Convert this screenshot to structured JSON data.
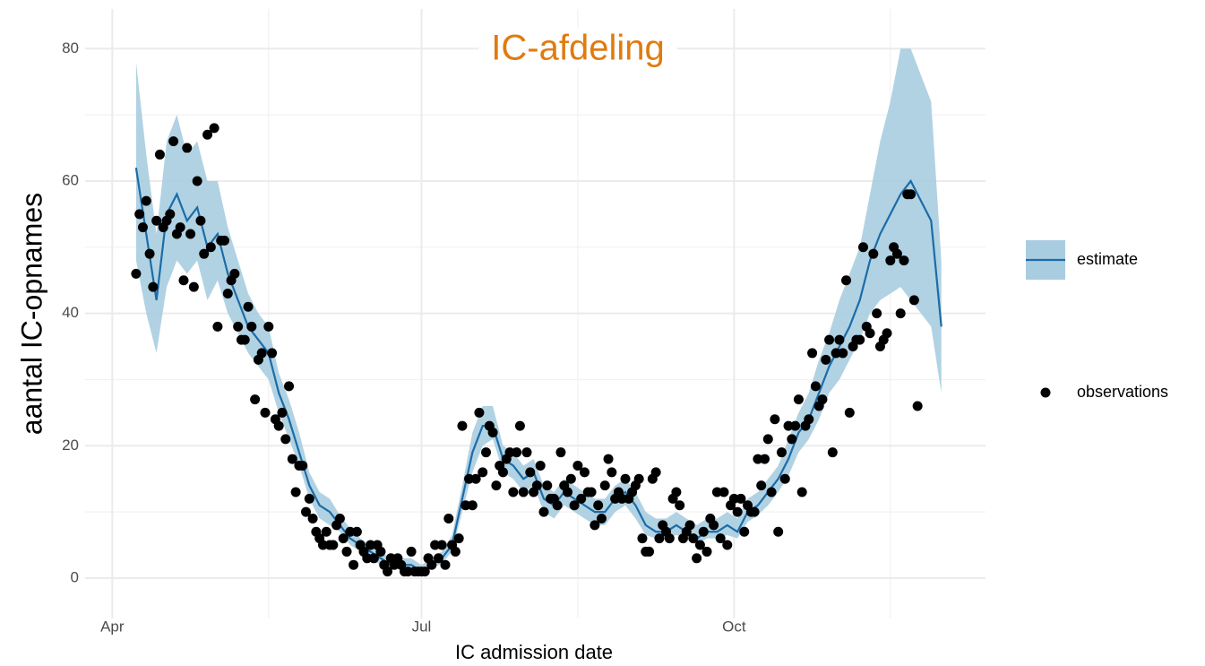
{
  "chart_data": {
    "type": "line",
    "title": "IC-afdeling",
    "x_label": "IC admission date",
    "y_label": "aantal IC-opnames",
    "xlim": [
      -8,
      257
    ],
    "ylim": [
      -6.1,
      86
    ],
    "xticks": [
      {
        "value": 0,
        "label": "Apr"
      },
      {
        "value": 91,
        "label": "Jul"
      },
      {
        "value": 183,
        "label": "Oct"
      }
    ],
    "xminor": [
      46,
      137,
      229
    ],
    "yticks": [
      0,
      20,
      40,
      60,
      80
    ],
    "yminor": [
      10,
      30,
      50,
      70
    ],
    "grid": true,
    "legend": "right",
    "series": [
      {
        "name": "estimate",
        "type": "line",
        "color": "#1b6ca8",
        "band_color": "#a9cde0",
        "x": [
          7,
          10,
          13,
          16,
          19,
          22,
          25,
          28,
          31,
          34,
          37,
          40,
          43,
          46,
          49,
          52,
          55,
          58,
          61,
          64,
          67,
          70,
          73,
          76,
          79,
          82,
          85,
          88,
          91,
          94,
          97,
          100,
          103,
          106,
          109,
          112,
          115,
          118,
          121,
          124,
          127,
          130,
          133,
          136,
          139,
          142,
          145,
          148,
          151,
          154,
          157,
          160,
          163,
          166,
          169,
          172,
          175,
          178,
          181,
          184,
          187,
          190,
          193,
          196,
          199,
          202,
          205,
          208,
          211,
          214,
          217,
          220,
          223,
          226,
          229,
          232,
          235,
          238,
          241,
          244
        ],
        "values": [
          62,
          52,
          42,
          55,
          58,
          54,
          56,
          50,
          52,
          46,
          42,
          38,
          36,
          34,
          28,
          24,
          19,
          14,
          11,
          10,
          8,
          6,
          5,
          4,
          3,
          2,
          2,
          2,
          1,
          2,
          3,
          5,
          12,
          19,
          23,
          23,
          18,
          17,
          15,
          16,
          12,
          11,
          13,
          12,
          11,
          10,
          10,
          12,
          13,
          11,
          8,
          7,
          7,
          8,
          7,
          6,
          7,
          7,
          8,
          7,
          10,
          11,
          13,
          15,
          18,
          22,
          24,
          28,
          32,
          35,
          38,
          42,
          48,
          52,
          55,
          58,
          60,
          57,
          54,
          38
        ],
        "lower": [
          48,
          40,
          34,
          44,
          48,
          46,
          48,
          42,
          45,
          40,
          37,
          34,
          32,
          30,
          25,
          21,
          17,
          12,
          9,
          8,
          7,
          5,
          4,
          3,
          2,
          1.5,
          1.5,
          1.5,
          0.8,
          1.5,
          2.2,
          4,
          10,
          16,
          20,
          21,
          16,
          15,
          13,
          14,
          10,
          9,
          11,
          10,
          9,
          8,
          8,
          10,
          11,
          9,
          6.5,
          6,
          6,
          6.5,
          6,
          5,
          6,
          6,
          6.5,
          6,
          8.5,
          9.5,
          11,
          13,
          15.5,
          19,
          21,
          24,
          28,
          30,
          33,
          36,
          40,
          42,
          43,
          44,
          42,
          40,
          38,
          28
        ],
        "upper": [
          78,
          64,
          52,
          66,
          70,
          64,
          66,
          60,
          60,
          53,
          48,
          43,
          40,
          38,
          31,
          27,
          22,
          16,
          13,
          12,
          9.5,
          7.5,
          6,
          5,
          4,
          3,
          3,
          3,
          2,
          3,
          4,
          6.5,
          14,
          22,
          26,
          26,
          20,
          19,
          17,
          18,
          14,
          13,
          15,
          14,
          13,
          12,
          12,
          14,
          15,
          13,
          10,
          9,
          9,
          10,
          9,
          8,
          9,
          9,
          10,
          9,
          12,
          13,
          15,
          17,
          21,
          25,
          28,
          33,
          37,
          42,
          46,
          50,
          58,
          66,
          72,
          80,
          80,
          76,
          72,
          48
        ]
      },
      {
        "name": "observations",
        "type": "scatter",
        "color": "#000000",
        "x": [
          7,
          8,
          9,
          10,
          11,
          12,
          13,
          14,
          15,
          16,
          17,
          18,
          19,
          20,
          21,
          22,
          23,
          24,
          25,
          26,
          27,
          28,
          29,
          30,
          31,
          32,
          33,
          34,
          35,
          36,
          37,
          38,
          39,
          40,
          41,
          42,
          43,
          44,
          45,
          46,
          47,
          48,
          49,
          50,
          51,
          52,
          53,
          54,
          55,
          56,
          57,
          58,
          59,
          60,
          61,
          62,
          63,
          64,
          65,
          66,
          67,
          68,
          69,
          70,
          71,
          72,
          73,
          74,
          75,
          76,
          77,
          78,
          79,
          80,
          81,
          82,
          83,
          84,
          85,
          86,
          87,
          88,
          89,
          90,
          91,
          92,
          93,
          94,
          95,
          96,
          97,
          98,
          99,
          100,
          101,
          102,
          103,
          104,
          105,
          106,
          107,
          108,
          109,
          110,
          111,
          112,
          113,
          114,
          115,
          116,
          117,
          118,
          119,
          120,
          121,
          122,
          123,
          124,
          125,
          126,
          127,
          128,
          129,
          130,
          131,
          132,
          133,
          134,
          135,
          136,
          137,
          138,
          139,
          140,
          141,
          142,
          143,
          144,
          145,
          146,
          147,
          148,
          149,
          150,
          151,
          152,
          153,
          154,
          155,
          156,
          157,
          158,
          159,
          160,
          161,
          162,
          163,
          164,
          165,
          166,
          167,
          168,
          169,
          170,
          171,
          172,
          173,
          174,
          175,
          176,
          177,
          178,
          179,
          180,
          181,
          182,
          183,
          184,
          185,
          186,
          187,
          188,
          189,
          190,
          191,
          192,
          193,
          194,
          195,
          196,
          197,
          198,
          199,
          200,
          201,
          202,
          203,
          204,
          205,
          206,
          207,
          208,
          209,
          210,
          211,
          212,
          213,
          214,
          215,
          216,
          217,
          218,
          219,
          220,
          221,
          222,
          223,
          224,
          225,
          226,
          227,
          228,
          229,
          230,
          231,
          232,
          233,
          234,
          235,
          236,
          237
        ],
        "values": [
          46,
          55,
          53,
          57,
          49,
          44,
          54,
          64,
          53,
          54,
          55,
          66,
          52,
          53,
          45,
          65,
          52,
          44,
          60,
          54,
          49,
          67,
          50,
          68,
          38,
          51,
          51,
          43,
          45,
          46,
          38,
          36,
          36,
          41,
          38,
          27,
          33,
          34,
          25,
          38,
          34,
          24,
          23,
          25,
          21,
          29,
          18,
          13,
          17,
          17,
          10,
          12,
          9,
          7,
          6,
          5,
          7,
          5,
          5,
          8,
          9,
          6,
          4,
          7,
          2,
          7,
          5,
          4,
          3,
          5,
          3,
          5,
          4,
          2,
          1,
          3,
          2,
          3,
          2,
          1,
          1,
          4,
          1,
          1,
          1,
          1,
          3,
          2,
          5,
          3,
          5,
          2,
          9,
          5,
          4,
          6,
          23,
          11,
          15,
          11,
          15,
          25,
          16,
          19,
          23,
          22,
          14,
          17,
          16,
          18,
          19,
          13,
          19,
          23,
          13,
          19,
          16,
          13,
          14,
          17,
          10,
          14,
          12,
          12,
          11,
          19,
          14,
          13,
          15,
          11,
          17,
          12,
          16,
          13,
          13,
          8,
          11,
          9,
          14,
          18,
          16,
          12,
          13,
          12,
          15,
          12,
          13,
          14,
          15,
          6,
          4,
          4,
          15,
          16,
          6,
          8,
          7,
          6,
          12,
          13,
          11,
          6,
          7,
          8,
          6,
          3,
          5,
          7,
          4,
          9,
          8,
          13,
          6,
          13,
          5,
          11,
          12,
          10,
          12,
          7,
          11,
          10,
          10,
          18,
          14,
          18,
          21,
          13,
          24,
          7,
          19,
          15,
          23,
          21,
          23,
          27,
          13,
          23,
          24,
          34,
          29,
          26,
          27,
          33,
          36,
          19,
          34,
          36,
          34,
          45,
          25,
          35,
          36,
          36,
          50,
          38,
          37,
          49,
          40,
          35,
          36,
          37,
          48,
          50,
          49,
          40,
          48,
          58,
          58,
          42,
          26
        ]
      }
    ]
  }
}
